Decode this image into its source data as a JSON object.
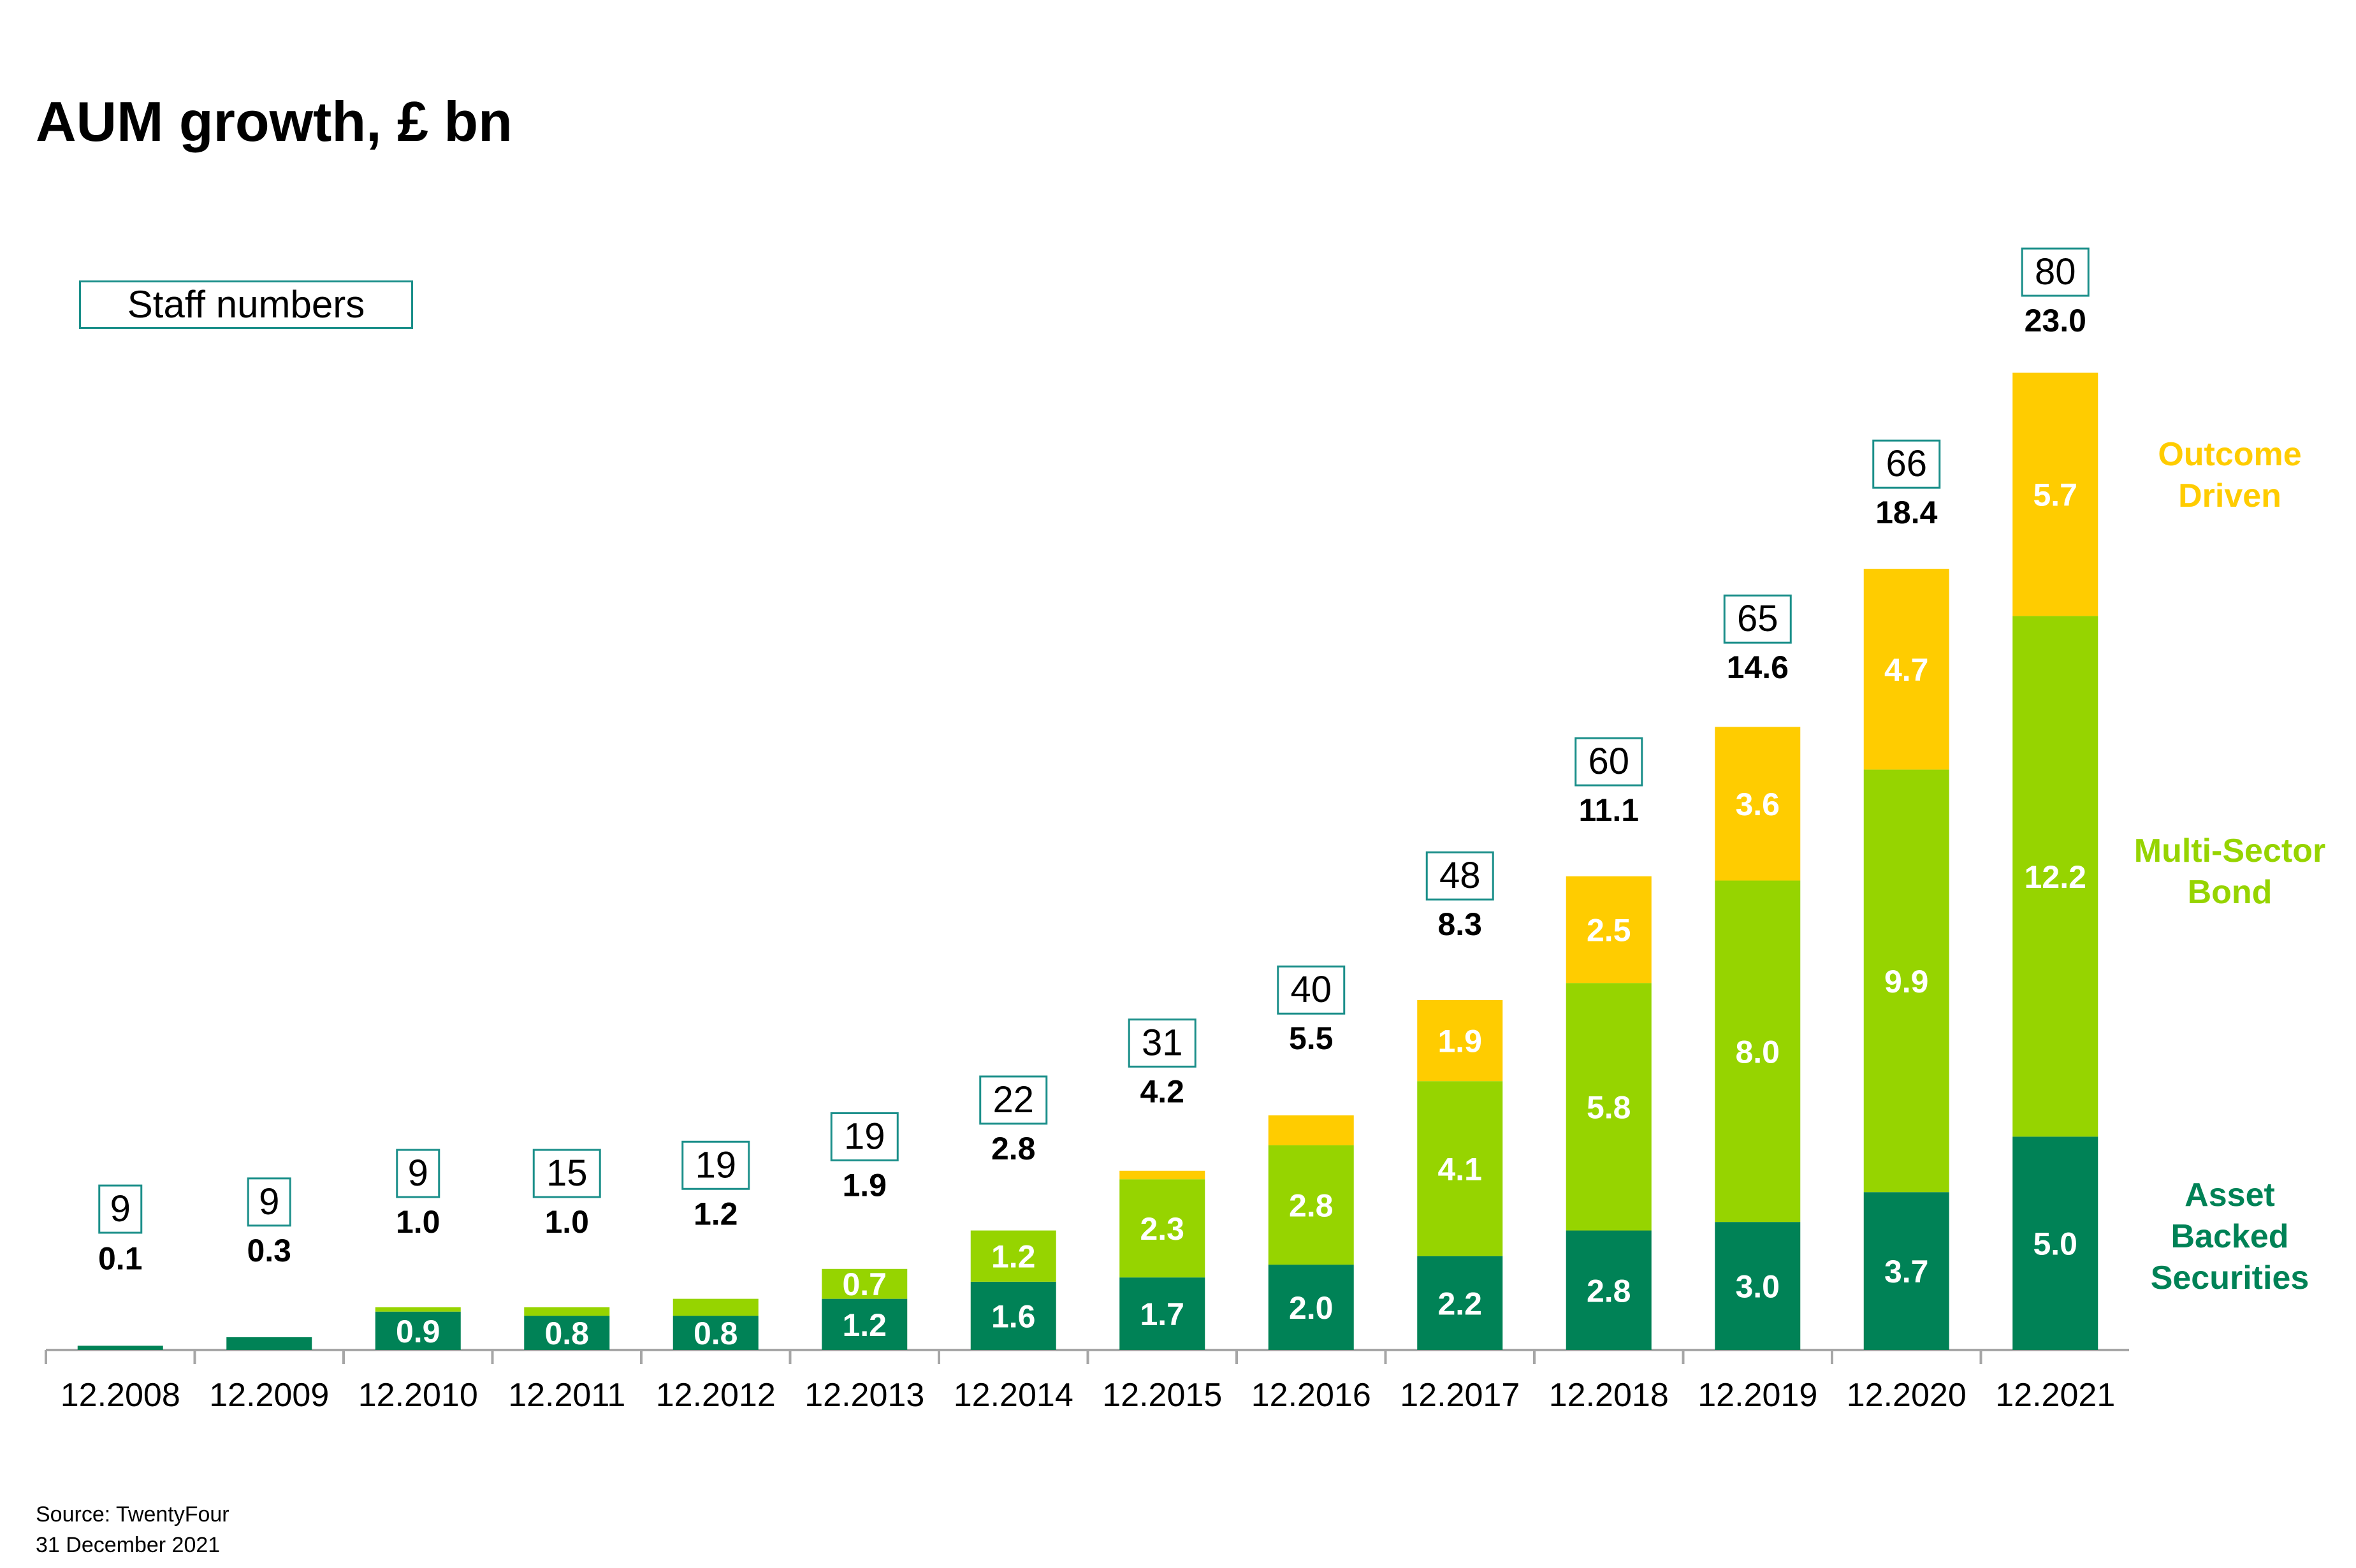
{
  "title": "AUM growth, £ bn",
  "staff_legend_label": "Staff numbers",
  "source": "Source: TwentyFour",
  "date": "31 December 2021",
  "colors": {
    "asset_backed": "#008256",
    "multi_sector": "#96d400",
    "outcome_driven": "#ffcc00",
    "staff_border": "#1b8f8a",
    "axis": "#a6a6a6"
  },
  "legend": [
    {
      "key": "outcome_driven",
      "lines": [
        "Outcome",
        "Driven"
      ]
    },
    {
      "key": "multi_sector",
      "lines": [
        "Multi-Sector",
        "Bond"
      ]
    },
    {
      "key": "asset_backed",
      "lines": [
        "Asset",
        "Backed",
        "Securities"
      ]
    }
  ],
  "chart_data": {
    "type": "bar",
    "stacked": true,
    "title": "AUM growth, £ bn",
    "categories": [
      "12.2008",
      "12.2009",
      "12.2010",
      "12.2011",
      "12.2012",
      "12.2013",
      "12.2014",
      "12.2015",
      "12.2016",
      "12.2017",
      "12.2018",
      "12.2019",
      "12.2020",
      "12.2021"
    ],
    "series": [
      {
        "name": "Asset Backed Securities",
        "key": "asset_backed",
        "values": [
          0.1,
          0.3,
          0.9,
          0.8,
          0.8,
          1.2,
          1.6,
          1.7,
          2.0,
          2.2,
          2.8,
          3.0,
          3.7,
          5.0
        ],
        "labels": [
          "",
          "",
          "0.9",
          "0.8",
          "0.8",
          "1.2",
          "1.6",
          "1.7",
          "2.0",
          "2.2",
          "2.8",
          "3.0",
          "3.7",
          "5.0"
        ]
      },
      {
        "name": "Multi-Sector Bond",
        "key": "multi_sector",
        "values": [
          0,
          0,
          0.1,
          0.2,
          0.4,
          0.7,
          1.2,
          2.3,
          2.8,
          4.1,
          5.8,
          8.0,
          9.9,
          12.2
        ],
        "labels": [
          "",
          "",
          "",
          "",
          "",
          "0.7",
          "1.2",
          "2.3",
          "2.8",
          "4.1",
          "5.8",
          "8.0",
          "9.9",
          "12.2"
        ]
      },
      {
        "name": "Outcome Driven",
        "key": "outcome_driven",
        "values": [
          0,
          0,
          0,
          0,
          0,
          0,
          0,
          0.2,
          0.7,
          1.9,
          2.5,
          3.6,
          4.7,
          5.7
        ],
        "labels": [
          "",
          "",
          "",
          "",
          "",
          "",
          "",
          "",
          "",
          "1.9",
          "2.5",
          "3.6",
          "4.7",
          "5.7"
        ]
      }
    ],
    "totals": [
      "0.1",
      "0.3",
      "1.0",
      "1.0",
      "1.2",
      "1.9",
      "2.8",
      "4.2",
      "5.5",
      "8.3",
      "11.1",
      "14.6",
      "18.4",
      "23.0"
    ],
    "staff_numbers": [
      "9",
      "9",
      "9",
      "15",
      "19",
      "19",
      "22",
      "31",
      "40",
      "48",
      "60",
      "65",
      "66",
      "80"
    ],
    "ylim": [
      0,
      24
    ],
    "grid": false,
    "legend_position": "right"
  }
}
